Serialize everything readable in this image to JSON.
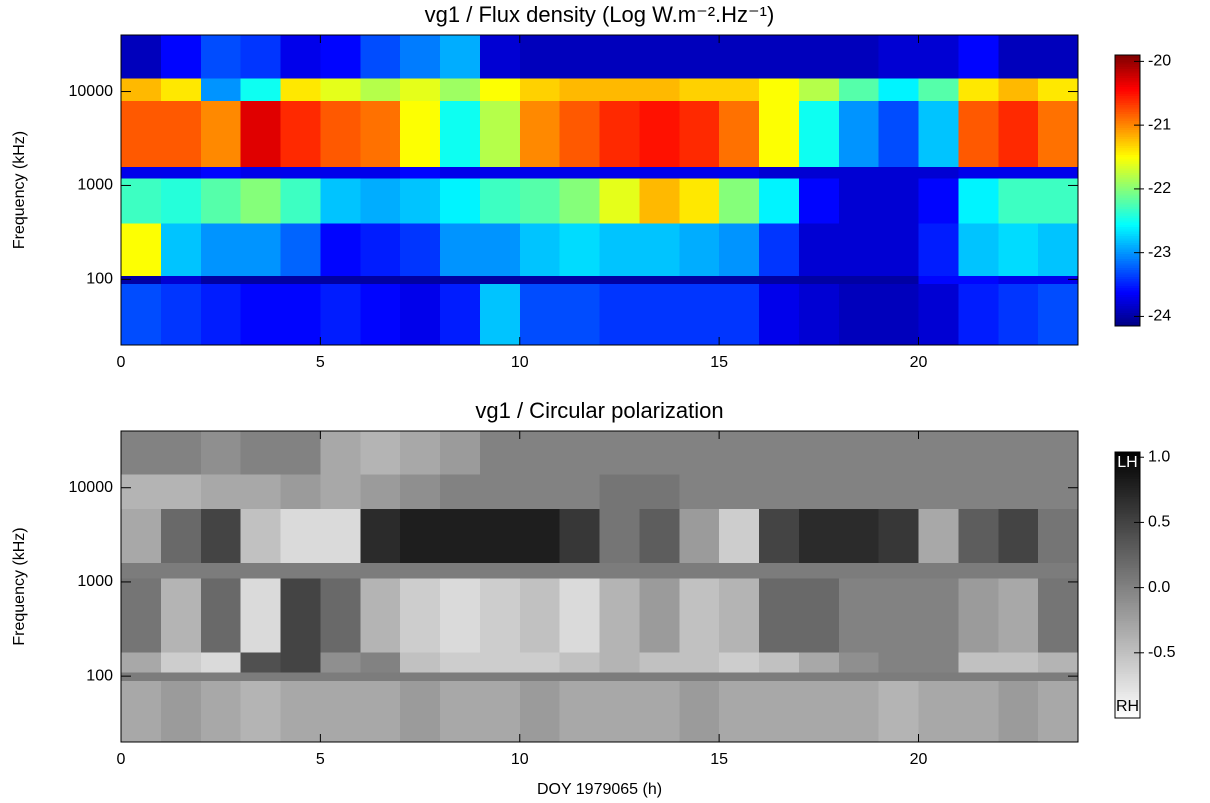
{
  "chart_data": [
    {
      "type": "heatmap",
      "title": "vg1 / Flux density (Log W.m⁻².Hz⁻¹)",
      "ylabel": "Frequency (kHz)",
      "xlim": [
        0,
        24
      ],
      "xticks": [
        0,
        5,
        10,
        15,
        20
      ],
      "ylim": [
        20,
        40000
      ],
      "yticks": [
        100,
        1000,
        10000
      ],
      "ylog": true,
      "colormap": "jet",
      "zlim": [
        -24.15,
        -19.9
      ],
      "zticks": [
        -20,
        -21,
        -22,
        -23,
        -24
      ],
      "x_bins": [
        0,
        1,
        2,
        3,
        4,
        5,
        6,
        7,
        8,
        9,
        10,
        11,
        12,
        13,
        14,
        15,
        16,
        17,
        18,
        19,
        20,
        21,
        22,
        23,
        24
      ],
      "y_bins": [
        20,
        90,
        110,
        400,
        1200,
        1600,
        8000,
        14000,
        40000
      ],
      "values": [
        [
          -23.3,
          -23.4,
          -23.5,
          -23.6,
          -23.6,
          -23.5,
          -23.6,
          -23.7,
          -23.5,
          -22.8,
          -23.3,
          -23.3,
          -23.4,
          -23.4,
          -23.4,
          -23.4,
          -23.7,
          -23.8,
          -23.9,
          -23.9,
          -23.8,
          -23.5,
          -23.4,
          -23.3
        ],
        [
          -24,
          -23.8,
          -24,
          -24,
          -24,
          -24,
          -24,
          -24,
          -24,
          -24,
          -24,
          -24,
          -24,
          -24,
          -24,
          -24,
          -24,
          -24,
          -24,
          -24,
          -23.6,
          -23.6,
          -23.7,
          -23.7
        ],
        [
          -21.5,
          -22.8,
          -23,
          -23,
          -23.2,
          -23.6,
          -23.5,
          -23.4,
          -23,
          -23,
          -22.8,
          -22.7,
          -22.8,
          -22.8,
          -22.9,
          -23,
          -23.4,
          -23.8,
          -23.8,
          -23.8,
          -23.5,
          -22.8,
          -22.7,
          -22.8
        ],
        [
          -22.3,
          -22.4,
          -22.2,
          -22,
          -22.3,
          -22.8,
          -22.9,
          -22.8,
          -22.6,
          -22.3,
          -22.2,
          -22,
          -21.6,
          -21.2,
          -21.4,
          -22,
          -22.6,
          -23.6,
          -23.8,
          -23.8,
          -23.6,
          -22.6,
          -22.3,
          -22.3
        ],
        [
          -23.7,
          -23.7,
          -23.6,
          -23.7,
          -23.7,
          -23.7,
          -23.7,
          -23.6,
          -23.7,
          -23.7,
          -23.7,
          -23.7,
          -23.7,
          -23.7,
          -23.7,
          -23.7,
          -23.8,
          -23.8,
          -23.8,
          -23.8,
          -23.8,
          -23.7,
          -23.7,
          -23.7
        ],
        [
          -20.8,
          -20.8,
          -21,
          -20.3,
          -20.6,
          -20.8,
          -20.9,
          -21.5,
          -22.5,
          -21.8,
          -21,
          -20.8,
          -20.6,
          -20.5,
          -20.6,
          -20.9,
          -21.5,
          -22.5,
          -23,
          -23.3,
          -22.8,
          -20.8,
          -20.6,
          -20.9
        ],
        [
          -21.2,
          -21.4,
          -23,
          -22.5,
          -21.4,
          -21.6,
          -21.8,
          -21.6,
          -21.9,
          -21.5,
          -21.3,
          -21.2,
          -21.2,
          -21.2,
          -21.3,
          -21.3,
          -21.5,
          -21.8,
          -22.2,
          -22.6,
          -22.2,
          -21.4,
          -21.2,
          -21.4
        ],
        [
          -23.9,
          -23.6,
          -23.3,
          -23.4,
          -23.7,
          -23.6,
          -23.3,
          -23.1,
          -22.9,
          -23.8,
          -23.9,
          -23.9,
          -23.9,
          -23.9,
          -23.9,
          -23.9,
          -23.9,
          -23.9,
          -23.9,
          -23.8,
          -23.8,
          -23.6,
          -23.9,
          -23.9
        ]
      ]
    },
    {
      "type": "heatmap",
      "title": "vg1 / Circular polarization",
      "ylabel": "Frequency (kHz)",
      "xlabel": "DOY 1979065 (h)",
      "xlim": [
        0,
        24
      ],
      "xticks": [
        0,
        5,
        10,
        15,
        20
      ],
      "ylim": [
        20,
        40000
      ],
      "yticks": [
        100,
        1000,
        10000
      ],
      "ylog": true,
      "colormap": "gray_r",
      "zlim": [
        -1.0,
        1.04
      ],
      "zticks": [
        {
          "value": 1.0,
          "label": "1.0"
        },
        0.5,
        {
          "value": 0.0,
          "label": "0.0"
        },
        -0.5
      ],
      "colorbar_top_label": "LH",
      "colorbar_bottom_label": "RH",
      "x_bins": [
        0,
        1,
        2,
        3,
        4,
        5,
        6,
        7,
        8,
        9,
        10,
        11,
        12,
        13,
        14,
        15,
        16,
        17,
        18,
        19,
        20,
        21,
        22,
        23,
        24
      ],
      "y_bins": [
        20,
        90,
        110,
        180,
        1100,
        1600,
        6000,
        14000,
        40000
      ],
      "values": [
        [
          -0.3,
          -0.2,
          -0.3,
          -0.4,
          -0.3,
          -0.3,
          -0.3,
          -0.2,
          -0.3,
          -0.3,
          -0.2,
          -0.3,
          -0.3,
          -0.3,
          -0.2,
          -0.3,
          -0.3,
          -0.3,
          -0.3,
          -0.4,
          -0.3,
          -0.3,
          -0.2,
          -0.3
        ],
        [
          0.05,
          0.05,
          0.05,
          0.05,
          0.05,
          0.05,
          0.05,
          0.05,
          0.05,
          0.05,
          0.05,
          0.05,
          0.05,
          0.05,
          0.05,
          0.05,
          0.05,
          0.05,
          0.05,
          0.05,
          0.05,
          0.05,
          0.05,
          0.05
        ],
        [
          -0.3,
          -0.6,
          -0.7,
          0.4,
          0.5,
          -0.1,
          0.0,
          -0.5,
          -0.6,
          -0.6,
          -0.6,
          -0.5,
          -0.4,
          -0.5,
          -0.5,
          -0.6,
          -0.5,
          -0.3,
          -0.1,
          0.0,
          0.0,
          -0.5,
          -0.5,
          -0.4
        ],
        [
          0.1,
          -0.4,
          0.2,
          -0.7,
          0.5,
          0.2,
          -0.4,
          -0.6,
          -0.7,
          -0.6,
          -0.5,
          -0.7,
          -0.4,
          -0.2,
          -0.5,
          -0.4,
          0.2,
          0.2,
          0.0,
          0.0,
          0.0,
          -0.2,
          -0.3,
          0.1
        ],
        [
          0.05,
          0.05,
          0.05,
          0.05,
          0.05,
          0.05,
          0.05,
          0.05,
          0.05,
          0.05,
          0.05,
          0.05,
          0.05,
          0.05,
          0.05,
          0.05,
          0.05,
          0.05,
          0.05,
          0.05,
          0.05,
          0.05,
          0.05,
          0.05
        ],
        [
          -0.3,
          0.2,
          0.5,
          -0.5,
          -0.7,
          -0.7,
          0.7,
          0.8,
          0.8,
          0.8,
          0.8,
          0.6,
          0.1,
          0.3,
          -0.2,
          -0.6,
          0.5,
          0.7,
          0.7,
          0.6,
          -0.3,
          0.3,
          0.5,
          0.1
        ],
        [
          -0.4,
          -0.4,
          -0.3,
          -0.3,
          -0.2,
          -0.3,
          -0.2,
          -0.1,
          0.0,
          0.0,
          0.0,
          0.0,
          0.1,
          0.1,
          0.0,
          0.0,
          0.0,
          0.0,
          0.0,
          0.0,
          0.0,
          0.0,
          0.0,
          0.0
        ],
        [
          0.0,
          0.0,
          -0.1,
          0.0,
          0.0,
          -0.3,
          -0.4,
          -0.3,
          -0.2,
          0.0,
          0.0,
          0.0,
          0.0,
          0.0,
          0.0,
          0.0,
          0.0,
          0.0,
          0.0,
          0.0,
          0.0,
          0.0,
          0.0,
          0.0
        ]
      ]
    }
  ]
}
